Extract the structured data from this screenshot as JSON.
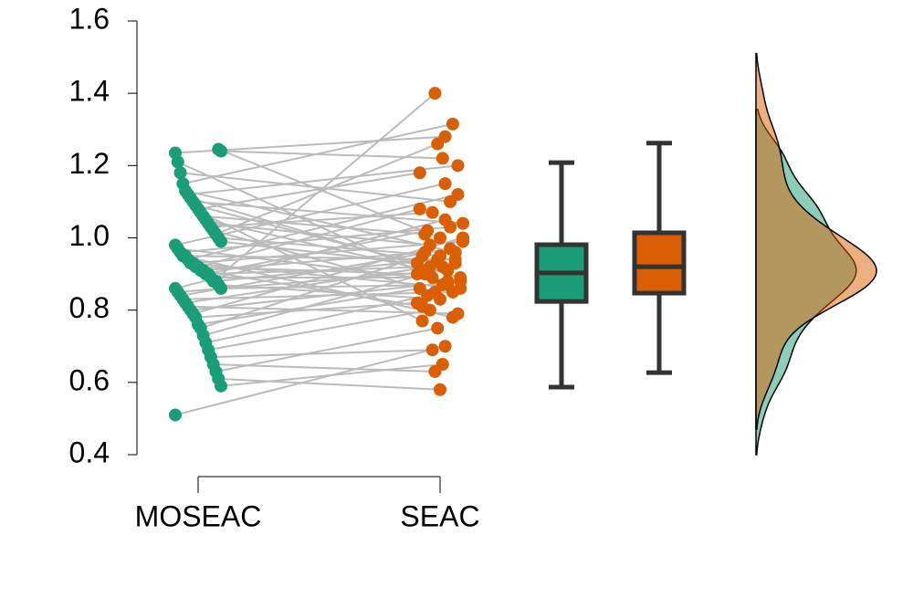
{
  "chart_data": {
    "type": "raincloud",
    "series": [
      {
        "name": "MOSEAC",
        "color": "#1b9e77",
        "values": [
          0.51,
          0.59,
          0.61,
          0.63,
          0.65,
          0.67,
          0.69,
          0.71,
          0.73,
          0.75,
          0.76,
          0.78,
          0.79,
          0.8,
          0.81,
          0.82,
          0.83,
          0.84,
          0.85,
          0.86,
          0.86,
          0.87,
          0.88,
          0.88,
          0.89,
          0.9,
          0.9,
          0.91,
          0.91,
          0.92,
          0.92,
          0.93,
          0.93,
          0.94,
          0.95,
          0.95,
          0.96,
          0.97,
          0.98,
          0.99,
          1.0,
          1.01,
          1.02,
          1.03,
          1.04,
          1.05,
          1.06,
          1.07,
          1.08,
          1.09,
          1.1,
          1.11,
          1.12,
          1.13,
          1.15,
          1.18,
          1.21,
          1.235,
          1.24,
          1.245
        ],
        "box": {
          "min": 0.587,
          "q1": 0.824,
          "median": 0.903,
          "q3": 0.981,
          "max": 1.208
        }
      },
      {
        "name": "SEAC",
        "color": "#d95f02",
        "values": [
          0.7,
          0.65,
          0.58,
          0.75,
          0.63,
          0.69,
          0.8,
          0.84,
          0.9,
          0.95,
          0.86,
          0.82,
          1.0,
          0.88,
          0.79,
          0.93,
          0.85,
          0.97,
          0.91,
          1.05,
          0.87,
          0.83,
          0.94,
          1.4,
          0.89,
          0.92,
          1.02,
          0.96,
          0.81,
          1.08,
          0.9,
          0.99,
          0.86,
          1.12,
          0.94,
          0.78,
          1.03,
          0.88,
          1.15,
          0.92,
          0.95,
          1.26,
          0.85,
          1.07,
          0.98,
          0.91,
          1.01,
          0.77,
          1.18,
          0.93,
          1.04,
          0.89,
          1.2,
          0.96,
          1.315,
          1.1,
          0.87,
          1.28,
          1.22,
          1.0
        ],
        "box": {
          "min": 0.627,
          "q1": 0.847,
          "median": 0.92,
          "q3": 1.014,
          "max": 1.262
        }
      }
    ],
    "ylim": [
      0.4,
      1.6
    ],
    "yticks": [
      0.4,
      0.6,
      0.8,
      {
        "value": 1,
        "label": "1.0"
      },
      1.2,
      1.4,
      1.6
    ],
    "link_color": "#bbbbbb"
  }
}
